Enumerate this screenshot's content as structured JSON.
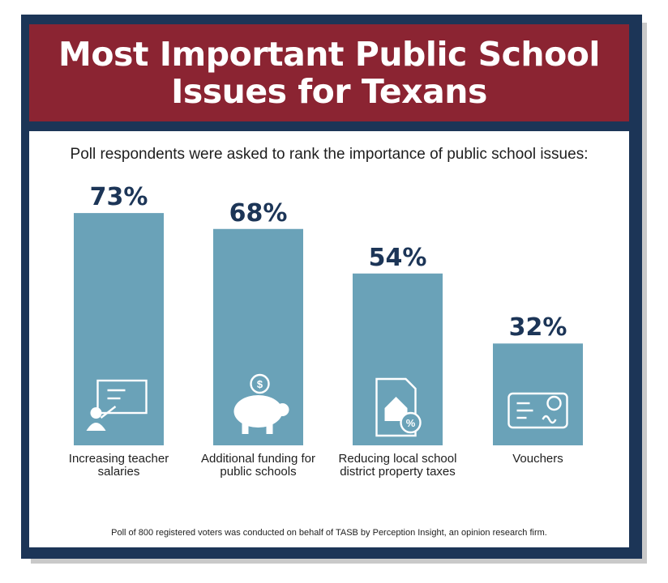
{
  "title": "Most Important Public School Issues for Texans",
  "subtitle": "Poll respondents were asked to rank the importance of public school issues:",
  "footnote": "Poll of 800 registered voters was conducted on behalf of TASB by Perception Insight, an opinion research firm.",
  "colors": {
    "frame": "#1c3557",
    "title_band": "#8b2432",
    "bar": "#6aa2b8",
    "value_text": "#1c3557"
  },
  "chart_data": {
    "type": "bar",
    "categories": [
      "Increasing teacher salaries",
      "Additional funding for public schools",
      "Reducing local school district property taxes",
      "Vouchers"
    ],
    "values": [
      73,
      68,
      54,
      32
    ],
    "value_labels": [
      "73%",
      "68%",
      "54%",
      "32%"
    ],
    "icons": [
      "teacher-presentation-icon",
      "piggy-bank-icon",
      "property-tax-icon",
      "check-icon"
    ],
    "ylim": [
      0,
      100
    ],
    "grid": false,
    "title": "Most Important Public School Issues for Texans"
  }
}
